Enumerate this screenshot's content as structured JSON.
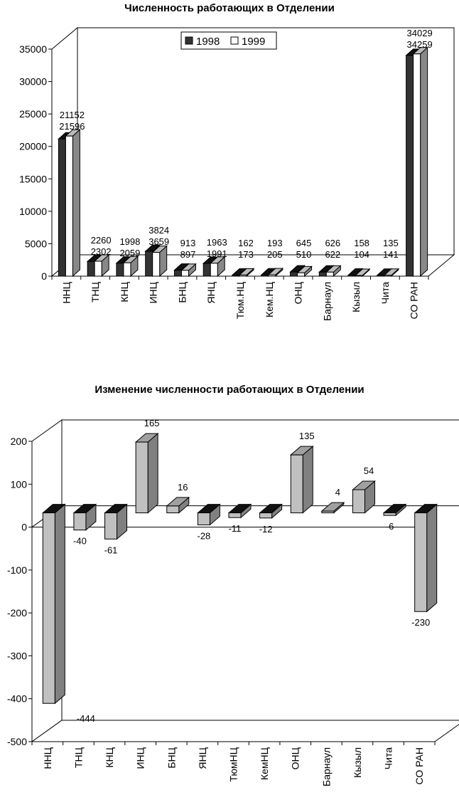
{
  "chart_data": [
    {
      "type": "bar",
      "title": "Численность работающих в Отделении",
      "categories": [
        "ННЦ",
        "ТНЦ",
        "КНЦ",
        "ИНЦ",
        "БНЦ",
        "ЯНЦ",
        "Тюм.НЦ",
        "Кем.НЦ",
        "ОНЦ",
        "Барнаул",
        "Кызыл",
        "Чита",
        "СО РАН"
      ],
      "series": [
        {
          "name": "1998",
          "color": "#333333",
          "values": [
            21152,
            2260,
            1998,
            3824,
            913,
            1963,
            162,
            193,
            645,
            626,
            158,
            135,
            34029
          ]
        },
        {
          "name": "1999",
          "color": "#ffffff",
          "values": [
            21596,
            2302,
            2059,
            3659,
            897,
            1991,
            173,
            205,
            510,
            622,
            104,
            141,
            34259
          ]
        }
      ],
      "ylim": [
        0,
        35000
      ],
      "yticks": [
        0,
        5000,
        10000,
        15000,
        20000,
        25000,
        30000,
        35000
      ],
      "xlabel": "",
      "ylabel": "",
      "legend": "top-center",
      "grid": false,
      "style": "3d"
    },
    {
      "type": "bar",
      "title": "Изменение численности работающих в Отделении",
      "categories": [
        "ННЦ",
        "ТНЦ",
        "КНЦ",
        "ИНЦ",
        "БНЦ",
        "ЯНЦ",
        "ТюмНЦ",
        "КемНЦ",
        "ОНЦ",
        "Барнаул",
        "Кызыл",
        "Чита",
        "СО РАН"
      ],
      "values": [
        -444,
        -40,
        -61,
        165,
        16,
        -28,
        -11,
        -12,
        135,
        4,
        54,
        -6,
        -230
      ],
      "ylim": [
        -500,
        200
      ],
      "yticks": [
        -500,
        -400,
        -300,
        -200,
        -100,
        0,
        100,
        200
      ],
      "xlabel": "",
      "ylabel": "",
      "grid": false,
      "style": "3d",
      "colors": {
        "top_dark": "#111111",
        "front_light": "#c0c0c0",
        "side": "#808080"
      }
    }
  ]
}
